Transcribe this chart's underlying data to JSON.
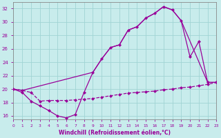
{
  "bg_color": "#c8ecec",
  "line_color": "#990099",
  "grid_color": "#a0d4d4",
  "xlim": [
    0,
    23
  ],
  "ylim": [
    15.5,
    33.0
  ],
  "yticks": [
    16,
    18,
    20,
    22,
    24,
    26,
    28,
    30,
    32
  ],
  "xticks": [
    0,
    1,
    2,
    3,
    4,
    5,
    6,
    7,
    8,
    9,
    10,
    11,
    12,
    13,
    14,
    15,
    16,
    17,
    18,
    19,
    20,
    21,
    22,
    23
  ],
  "curve1_x": [
    0,
    1,
    2,
    3,
    4,
    5,
    6,
    7,
    8,
    9,
    10,
    11,
    12,
    13,
    14,
    15,
    16,
    17,
    18,
    19,
    20,
    21,
    22,
    23
  ],
  "curve1_y": [
    20.0,
    19.5,
    18.2,
    17.5,
    16.8,
    16.0,
    15.7,
    16.2,
    19.5,
    22.5,
    24.5,
    26.2,
    26.6,
    28.8,
    29.3,
    30.6,
    31.3,
    32.3,
    31.8,
    30.2,
    24.8,
    27.1,
    21.0,
    21.0
  ],
  "curve2_x": [
    0,
    1,
    2,
    3,
    4,
    5,
    6,
    7,
    8,
    9,
    10,
    11,
    12,
    13,
    14,
    15,
    16,
    17,
    18,
    19,
    20,
    21,
    22,
    23
  ],
  "curve2_y": [
    20.0,
    19.8,
    19.5,
    18.2,
    18.3,
    18.3,
    18.3,
    18.4,
    18.5,
    18.6,
    18.8,
    19.0,
    19.2,
    19.4,
    19.5,
    19.6,
    19.7,
    19.9,
    20.0,
    20.2,
    20.3,
    20.5,
    20.7,
    21.0
  ],
  "curve3_x": [
    0,
    1,
    9,
    10,
    11,
    12,
    13,
    14,
    15,
    16,
    17,
    18,
    19,
    22,
    23
  ],
  "curve3_y": [
    20.0,
    19.8,
    22.5,
    24.5,
    26.2,
    26.6,
    28.8,
    29.3,
    30.6,
    31.3,
    32.3,
    31.8,
    30.2,
    21.0,
    21.0
  ],
  "xlabel": "Windchill (Refroidissement éolien,°C)"
}
